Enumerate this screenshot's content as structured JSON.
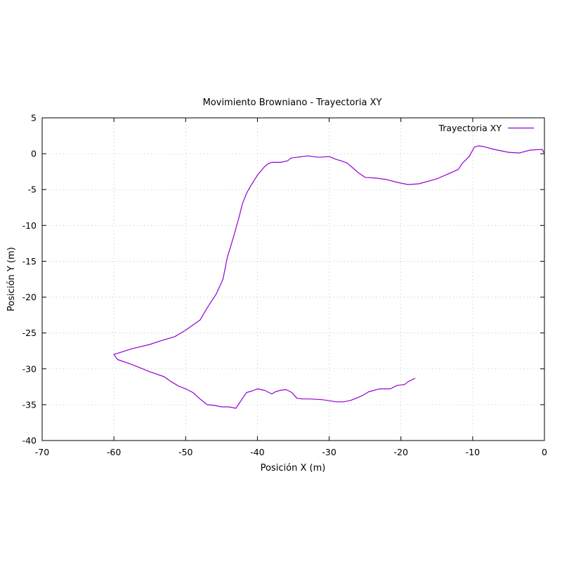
{
  "chart_data": {
    "type": "line",
    "title": "Movimiento Browniano - Trayectoria XY",
    "xlabel": "Posición X (m)",
    "ylabel": "Posición Y (m)",
    "xlim": [
      -70,
      0
    ],
    "ylim": [
      -40,
      5
    ],
    "xticks": [
      -70,
      -60,
      -50,
      -40,
      -30,
      -20,
      -10,
      0
    ],
    "yticks": [
      -40,
      -35,
      -30,
      -25,
      -20,
      -15,
      -10,
      -5,
      0,
      5
    ],
    "xtick_labels": [
      "-70",
      "-60",
      "-50",
      "-40",
      "-30",
      "-20",
      "-10",
      "0"
    ],
    "ytick_labels": [
      "-40",
      "-35",
      "-30",
      "-25",
      "-20",
      "-15",
      "-10",
      "-5",
      "0",
      "5"
    ],
    "grid": true,
    "legend_position": "top-right",
    "series": [
      {
        "name": "Trayectoria XY",
        "color": "#9400d3",
        "x": [
          0,
          -0.3,
          -2,
          -3.5,
          -5,
          -7,
          -8.5,
          -9.2,
          -9.8,
          -10,
          -10.5,
          -11.5,
          -12,
          -15,
          -17.5,
          -19,
          -20.5,
          -22,
          -23.5,
          -25,
          -26,
          -26.8,
          -27.5,
          -28.3,
          -29,
          -30,
          -31.5,
          -33,
          -34.5,
          -35.3,
          -35.8,
          -36.8,
          -38,
          -38.5,
          -39,
          -40,
          -41,
          -41.5,
          -42.1,
          -42.6,
          -43.3,
          -44.2,
          -44.8,
          -45.7,
          -47,
          -48,
          -50,
          -51.5,
          -53.5,
          -55,
          -57.5,
          -60,
          -59.5,
          -57.5,
          -56.5,
          -55,
          -53,
          -52,
          -51,
          -50,
          -49,
          -48,
          -47,
          -46,
          -45,
          -44,
          -43,
          -42,
          -41.5,
          -40.8,
          -40,
          -39,
          -38,
          -37.5,
          -36.8,
          -36,
          -35.2,
          -34.5,
          -33.8,
          -32.8,
          -31,
          -29,
          -28,
          -27,
          -25.5,
          -24.5,
          -23,
          -21.5,
          -20.5,
          -19.5,
          -19,
          -18
        ]
      },
      {
        "name": "",
        "y": [
          0,
          0.6,
          0.5,
          0.1,
          0.2,
          0.6,
          1,
          1.1,
          0.9,
          0.5,
          -0.4,
          -1.4,
          -2.2,
          -3.5,
          -4.2,
          -4.3,
          -4,
          -3.6,
          -3.4,
          -3.3,
          -2.6,
          -1.9,
          -1.3,
          -1,
          -0.8,
          -0.4,
          -0.5,
          -0.3,
          -0.5,
          -0.6,
          -1,
          -1.2,
          -1.2,
          -1.4,
          -1.8,
          -3,
          -4.6,
          -5.5,
          -7,
          -9,
          -11.5,
          -14.5,
          -17.5,
          -19.5,
          -21.5,
          -23.2,
          -24.6,
          -25.5,
          -26.1,
          -26.6,
          -27.2,
          -28,
          -28.7,
          -29.4,
          -29.8,
          -30.4,
          -31.1,
          -31.8,
          -32.4,
          -32.8,
          -33.3,
          -34.2,
          -35,
          -35.1,
          -35.3,
          -35.3,
          -35.5,
          -34,
          -33.3,
          -33.1,
          -32.8,
          -33,
          -33.5,
          -33.2,
          -33,
          -32.9,
          -33.3,
          -34.1,
          -34.2,
          -34.2,
          -34.3,
          -34.6,
          -34.6,
          -34.4,
          -33.8,
          -33.2,
          -32.8,
          -32.8,
          -32.3,
          -32.2,
          -31.8,
          -31.3
        ]
      }
    ]
  }
}
